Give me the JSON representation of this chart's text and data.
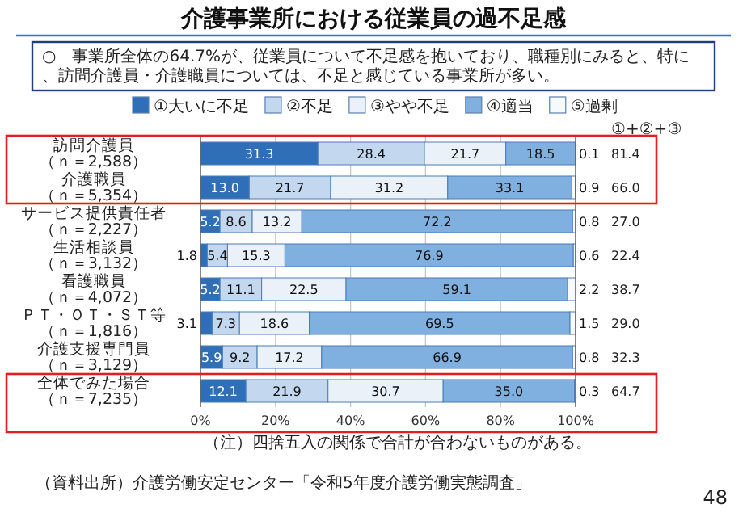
{
  "chart_data": {
    "type": "bar",
    "orientation": "horizontal",
    "stacked": true,
    "title": "介護事業所における従業員の過不足感",
    "subtitle": "○　事業所全体の64.7%が、従業員について不足感を抱いており、職種別にみると、特に、訪問介護員・介護職員については、不足と感じている事業所が多い。",
    "categories": [
      "訪問介護員（ｎ＝2,588）",
      "介護職員（ｎ＝5,354）",
      "サービス提供責任者（ｎ＝2,227）",
      "生活相談員（ｎ＝3,132）",
      "看護職員（ｎ＝4,072）",
      "ＰＴ・ＯＴ・ＳＴ等（ｎ＝1,816）",
      "介護支援専門員（ｎ＝3,129）",
      "全体でみた場合（ｎ＝7,235）"
    ],
    "series": [
      {
        "name": "①大いに不足",
        "color": "#2f6fb8",
        "values": [
          31.3,
          13.0,
          5.2,
          1.8,
          5.2,
          3.1,
          5.9,
          12.1
        ],
        "value_labels": [
          "31.3",
          "13.0",
          "5.2",
          "1.8",
          "5.2",
          "3.1",
          "5.9",
          "12.1"
        ]
      },
      {
        "name": "②不足",
        "color": "#c3d7ee",
        "values": [
          28.4,
          21.7,
          8.6,
          5.4,
          11.1,
          7.3,
          9.2,
          21.9
        ],
        "value_labels": [
          "28.4",
          "21.7",
          "8.6",
          "5.4",
          "11.1",
          "7.3",
          "9.2",
          "21.9"
        ]
      },
      {
        "name": "③やや不足",
        "color": "#eaf1f9",
        "values": [
          21.7,
          31.2,
          13.2,
          15.3,
          22.5,
          18.6,
          17.2,
          30.7
        ],
        "value_labels": [
          "21.7",
          "31.2",
          "13.2",
          "15.3",
          "22.5",
          "18.6",
          "17.2",
          "30.7"
        ]
      },
      {
        "name": "④適当",
        "color": "#7fb0e0",
        "values": [
          18.5,
          33.1,
          72.2,
          76.9,
          59.1,
          69.5,
          66.9,
          35.0
        ],
        "value_labels": [
          "18.5",
          "33.1",
          "72.2",
          "76.9",
          "59.1",
          "69.5",
          "66.9",
          "35.0"
        ]
      },
      {
        "name": "⑤過剰",
        "color": "#f7fafd",
        "values": [
          0.1,
          0.9,
          0.8,
          0.6,
          2.2,
          1.5,
          0.8,
          0.3
        ],
        "value_labels": [
          "0.1",
          "0.9",
          "0.8",
          "0.6",
          "2.2",
          "1.5",
          "0.8",
          "0.3"
        ]
      }
    ],
    "xlim": [
      0,
      100
    ],
    "xticks": [
      {
        "value": 0,
        "label": "0%"
      },
      {
        "value": 20,
        "label": "20%"
      },
      {
        "value": 40,
        "label": "40%"
      },
      {
        "value": 60,
        "label": "60%"
      },
      {
        "value": 80,
        "label": "80%"
      },
      {
        "value": 100,
        "label": "100%"
      }
    ],
    "grid": "x",
    "legend": "top",
    "annotations": [
      "①+②+③",
      "81.4",
      "66.0",
      "27.0",
      "22.4",
      "38.7",
      "29.0",
      "32.3",
      "64.7",
      "（注）四捨五入の関係で合計が合わないものがある。",
      "（資料出所）介護労働安定センター「令和5年度介護労働実態調査」",
      "48"
    ]
  }
}
